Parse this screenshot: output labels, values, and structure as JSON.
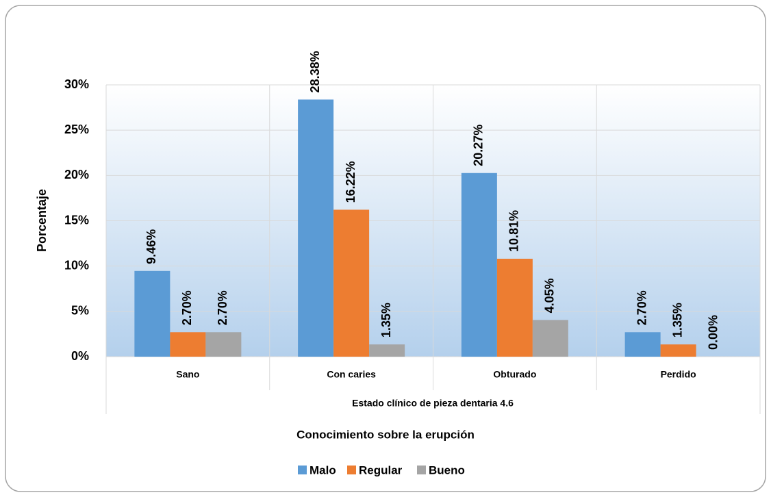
{
  "chart_data": {
    "type": "bar",
    "categories": [
      "Sano",
      "Con caries",
      "Obturado",
      "Perdido"
    ],
    "series": [
      {
        "name": "Malo",
        "color": "#5b9bd5",
        "values": [
          9.46,
          28.38,
          20.27,
          2.7
        ],
        "value_labels": [
          "9.46%",
          "28.38%",
          "20.27%",
          "2.70%"
        ]
      },
      {
        "name": "Regular",
        "color": "#ed7d31",
        "values": [
          2.7,
          16.22,
          10.81,
          1.35
        ],
        "value_labels": [
          "2.70%",
          "16.22%",
          "10.81%",
          "1.35%"
        ]
      },
      {
        "name": "Bueno",
        "color": "#a5a5a5",
        "values": [
          2.7,
          1.35,
          4.05,
          0.0
        ],
        "value_labels": [
          "2.70%",
          "1.35%",
          "4.05%",
          "0.00%"
        ]
      }
    ],
    "ylabel": "Porcentaje",
    "xlabel": "Estado clínico  de pieza dentaria 4.6",
    "legend_title": "Conocimiento sobre la erupción",
    "ylim": [
      0,
      30
    ],
    "yticks": [
      {
        "value": 0,
        "label": "0%"
      },
      {
        "value": 5,
        "label": "5%"
      },
      {
        "value": 10,
        "label": "10%"
      },
      {
        "value": 15,
        "label": "15%"
      },
      {
        "value": 20,
        "label": "20%"
      },
      {
        "value": 25,
        "label": "25%"
      },
      {
        "value": 30,
        "label": "30%"
      }
    ],
    "grid": true,
    "legend": "bottom"
  }
}
